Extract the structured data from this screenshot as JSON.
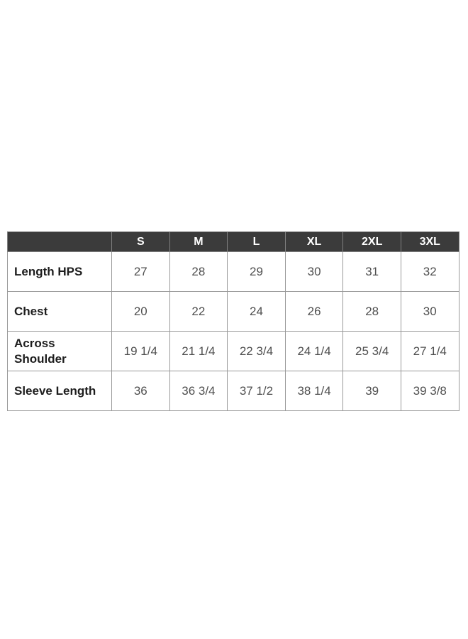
{
  "chart_data": {
    "type": "table",
    "description": "Garment size chart with measurements in inches",
    "columns": [
      "",
      "S",
      "M",
      "L",
      "XL",
      "2XL",
      "3XL"
    ],
    "rows": [
      {
        "label": "Length HPS",
        "values": [
          "27",
          "28",
          "29",
          "30",
          "31",
          "32"
        ]
      },
      {
        "label": "Chest",
        "values": [
          "20",
          "22",
          "24",
          "26",
          "28",
          "30"
        ]
      },
      {
        "label": "Across Shoulder",
        "values": [
          "19 1/4",
          "21 1/4",
          "22 3/4",
          "24 1/4",
          "25 3/4",
          "27 1/4"
        ]
      },
      {
        "label": "Sleeve Length",
        "values": [
          "36",
          "36 3/4",
          "37 1/2",
          "38 1/4",
          "39",
          "39 3/8"
        ]
      }
    ]
  },
  "colors": {
    "page_bg": "#ffffff",
    "header_bg": "#3b3b3b",
    "header_text": "#ffffff",
    "border": "#999999",
    "label_text": "#1d1d1d",
    "value_text": "#4f4f4f"
  }
}
